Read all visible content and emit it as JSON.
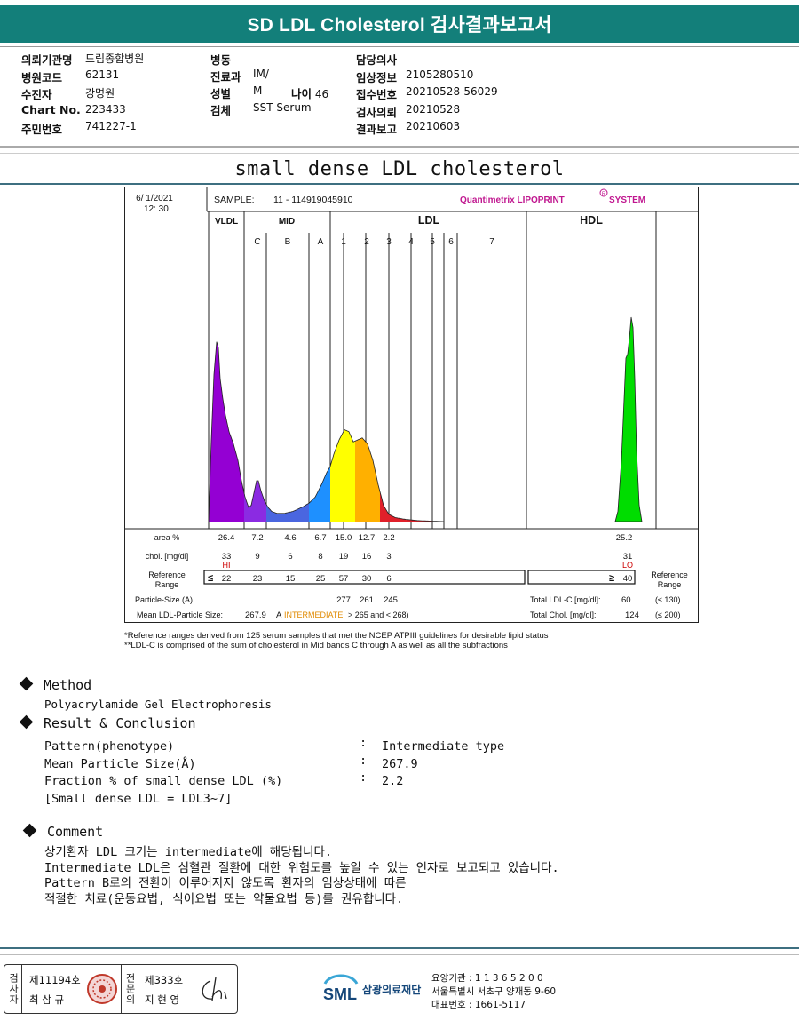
{
  "report": {
    "title": "SD LDL Cholesterol 검사결과보고서"
  },
  "header_info": {
    "col1": [
      {
        "label": "의뢰기관명",
        "value": "드림종합병원"
      },
      {
        "label": "병원코드",
        "value": "62131"
      },
      {
        "label": "수진자",
        "value": "강명원"
      },
      {
        "label": "Chart No.",
        "value": "223433"
      },
      {
        "label": "주민번호",
        "value": "741227-1"
      }
    ],
    "col2": [
      {
        "label": "병동",
        "value": ""
      },
      {
        "label": "진료과",
        "value": "IM/"
      },
      {
        "label": "성별",
        "value": "M"
      },
      {
        "label": "검체",
        "value": "SST Serum"
      }
    ],
    "age_label": "나이",
    "age_value": "46",
    "col3": [
      {
        "label": "담당의사",
        "value": ""
      },
      {
        "label": "임상정보",
        "value": "2105280510"
      },
      {
        "label": "접수번호",
        "value": "20210528-56029"
      },
      {
        "label": "검사의뢰",
        "value": "20210528"
      },
      {
        "label": "결과보고",
        "value": "20210603"
      }
    ]
  },
  "section_title": "small dense LDL cholesterol",
  "chart_data": {
    "type": "area",
    "date": "6/ 1/2021",
    "time": "12: 30",
    "sample_label": "SAMPLE:",
    "sample_id": "11 - 114919045910",
    "brand": "Quantimetrix LIPOPRINT",
    "brand_reg": "R",
    "brand_suffix": "SYSTEM",
    "groups": [
      "VLDL",
      "MID",
      "LDL",
      "HDL"
    ],
    "bands": [
      "C",
      "B",
      "A",
      "1",
      "2",
      "3",
      "4",
      "5",
      "6",
      "7"
    ],
    "band_colors": [
      "#9400d3",
      "#8b2be2",
      "#4a66e0",
      "#1e90ff",
      "#ffff00",
      "#ffb000",
      "#e0202a",
      "#cc1818",
      "#cc1818",
      "#cc1818",
      "#00dd00"
    ],
    "rows": {
      "area_label": "area %",
      "area": [
        "26.4",
        "7.2",
        "4.6",
        "6.7",
        "15.0",
        "12.7",
        "2.2"
      ],
      "hdl_area": "25.2",
      "chol_label": "chol. [mg/dl]",
      "chol": [
        "33",
        "9",
        "6",
        "8",
        "19",
        "16",
        "3"
      ],
      "hdl_chol": "31",
      "hi_flag": "HI",
      "lo_flag": "LO",
      "ref_label_1": "Reference",
      "ref_label_2": "Range",
      "ref_le": "≤",
      "ref": [
        "22",
        "23",
        "15",
        "25",
        "57",
        "30",
        "6"
      ],
      "ref_ge": "≥",
      "hdl_ref": "40",
      "particle_label": "Particle-Size (A)",
      "particle": [
        "277",
        "261",
        "245"
      ],
      "mean_label": "Mean LDL-Particle Size:",
      "mean_value": "267.9",
      "mean_a": "A",
      "mean_type": "INTERMEDIATE",
      "mean_range": "> 265 and < 268)",
      "total_ldl_label": "Total LDL-C [mg/dl]:",
      "total_ldl": "60",
      "total_ldl_ref": "(≤ 130)",
      "total_chol_label": "Total Chol. [mg/dl]:",
      "total_chol": "124",
      "total_chol_ref": "(≤ 200)"
    },
    "footnote1": "*Reference ranges derived from 125 serum samples that met the NCEP ATPIII guidelines for desirable lipid status",
    "footnote2": "**LDL-C is comprised of the sum of cholesterol in Mid bands C through A as well as all the subfractions"
  },
  "method": {
    "heading": "Method",
    "text": "Polyacrylamide Gel Electrophoresis"
  },
  "result": {
    "heading": "Result & Conclusion",
    "rows": [
      {
        "label": "Pattern(phenotype)",
        "value": "Intermediate type"
      },
      {
        "label": "Mean Particle Size(Å)",
        "value": "267.9"
      },
      {
        "label": "Fraction % of small dense LDL (%)",
        "value": "2.2"
      }
    ],
    "note": "[Small dense LDL = LDL3~7]"
  },
  "comment": {
    "heading": "Comment",
    "lines": [
      "상기환자 LDL 크기는 intermediate에 해당됩니다.",
      "Intermediate LDL은 심혈관 질환에 대한 위험도를 높일 수 있는 인자로 보고되고 있습니다.",
      "Pattern B로의 전환이 이루어지지 않도록 환자의 임상상태에 따른",
      "적절한 치료(운동요법, 식이요법 또는 약물요법 등)를 권유합니다."
    ]
  },
  "footer": {
    "examiner_label": "검사자",
    "examiner_no": "제11194호",
    "examiner_name": "최 삼 규",
    "specialist_label": "전문의",
    "specialist_no": "제333호",
    "specialist_name": "지 현 영",
    "logo_text": "SML",
    "org_name": "삼광의료재단",
    "care_no": "요양기관 : 1 1 3 6 5 2 0 0",
    "address": "서울특별시 서초구 양재동 9-60",
    "phone": "대표번호 : 1661-5117"
  }
}
